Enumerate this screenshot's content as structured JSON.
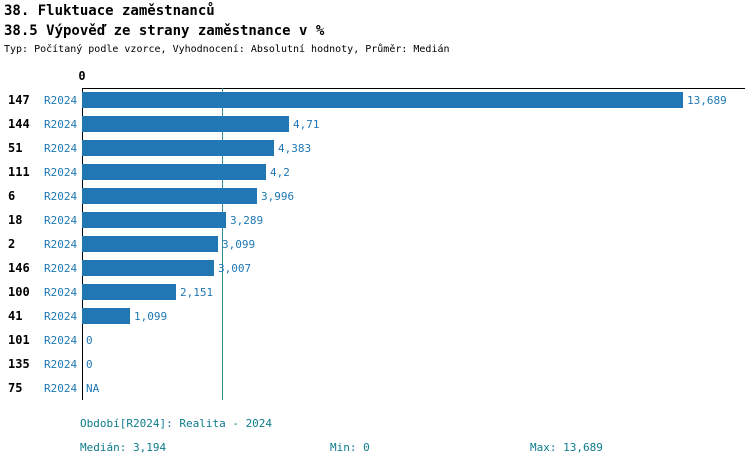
{
  "header": {
    "title": "38. Fluktuace zaměstnanců",
    "subtitle": "38.5 Výpověď ze strany zaměstnance v %",
    "meta": "Typ: Počítaný podle vzorce, Vyhodnocení: Absolutní hodnoty, Průměr: Medián"
  },
  "chart_data": {
    "type": "bar",
    "orientation": "horizontal",
    "axis_top_tick": "0",
    "xmax": 13.689,
    "median": 3.194,
    "legend_series": "R2024",
    "categories": [
      "147",
      "144",
      "51",
      "111",
      "6",
      "18",
      "2",
      "146",
      "100",
      "41",
      "101",
      "135",
      "75"
    ],
    "values": [
      13.689,
      4.71,
      4.383,
      4.2,
      3.996,
      3.289,
      3.099,
      3.007,
      2.151,
      1.099,
      0,
      0,
      null
    ],
    "rows": [
      {
        "category": "147",
        "series": "R2024",
        "value": 13.689,
        "display": "13,689"
      },
      {
        "category": "144",
        "series": "R2024",
        "value": 4.71,
        "display": "4,71"
      },
      {
        "category": "51",
        "series": "R2024",
        "value": 4.383,
        "display": "4,383"
      },
      {
        "category": "111",
        "series": "R2024",
        "value": 4.2,
        "display": "4,2"
      },
      {
        "category": "6",
        "series": "R2024",
        "value": 3.996,
        "display": "3,996"
      },
      {
        "category": "18",
        "series": "R2024",
        "value": 3.289,
        "display": "3,289"
      },
      {
        "category": "2",
        "series": "R2024",
        "value": 3.099,
        "display": "3,099"
      },
      {
        "category": "146",
        "series": "R2024",
        "value": 3.007,
        "display": "3,007"
      },
      {
        "category": "100",
        "series": "R2024",
        "value": 2.151,
        "display": "2,151"
      },
      {
        "category": "41",
        "series": "R2024",
        "value": 1.099,
        "display": "1,099"
      },
      {
        "category": "101",
        "series": "R2024",
        "value": 0,
        "display": "0"
      },
      {
        "category": "135",
        "series": "R2024",
        "value": 0,
        "display": "0"
      },
      {
        "category": "75",
        "series": "R2024",
        "value": null,
        "display": "NA"
      }
    ],
    "colors": {
      "bar": "#2077b4",
      "series_label": "#1f77b4",
      "value_label": "#1f77b4",
      "median_line": "#2f8f8f",
      "footer_text": "#0e7c8c"
    }
  },
  "footer": {
    "period": "Období[R2024]: Realita - 2024",
    "median": "Medián: 3,194",
    "min": "Min: 0",
    "max": "Max: 13,689"
  }
}
